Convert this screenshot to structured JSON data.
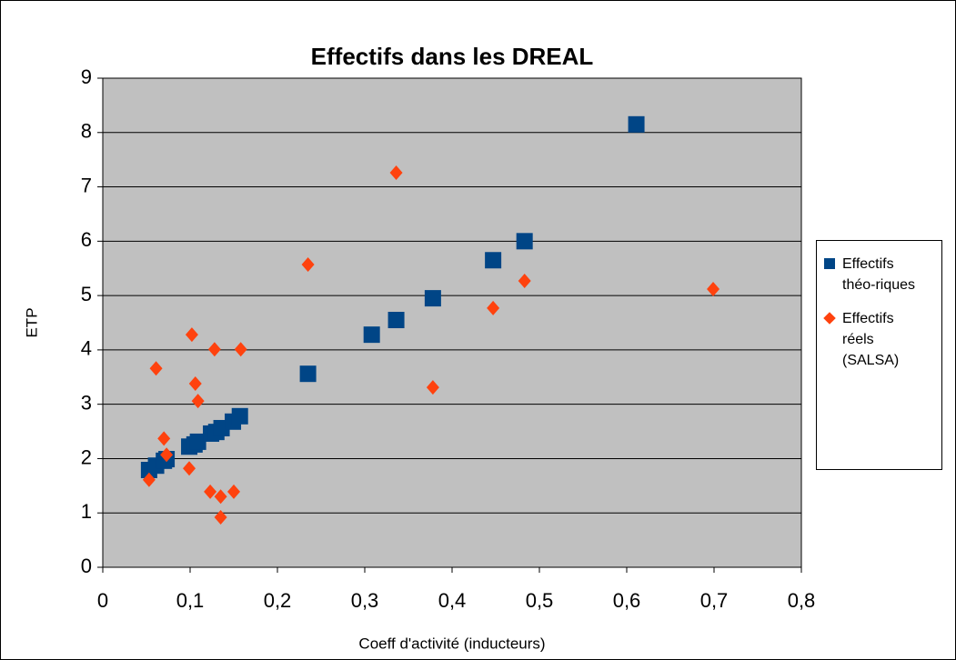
{
  "chart_data": {
    "type": "scatter",
    "title": "Effectifs dans les  DREAL",
    "xlabel": "Coeff d'activité (inducteurs)",
    "ylabel": "ETP",
    "xlim": [
      0,
      0.8
    ],
    "ylim": [
      0,
      9
    ],
    "xticks": [
      0,
      {
        "value": 0.1,
        "label": "0,1"
      },
      {
        "value": 0.2,
        "label": "0,2"
      },
      {
        "value": 0.3,
        "label": "0,3"
      },
      {
        "value": 0.4,
        "label": "0,4"
      },
      {
        "value": 0.5,
        "label": "0,5"
      },
      {
        "value": 0.6,
        "label": "0,6"
      },
      {
        "value": 0.7,
        "label": "0,7"
      },
      {
        "value": 0.8,
        "label": "0,8"
      }
    ],
    "yticks": [
      0,
      1,
      2,
      3,
      4,
      5,
      6,
      7,
      8,
      9
    ],
    "grid": true,
    "legend": "right",
    "series": [
      {
        "name": "Effectifs théo-riques",
        "color": "#004586",
        "marker": "square",
        "x": [
          0.053,
          0.061,
          0.07,
          0.073,
          0.099,
          0.105,
          0.109,
          0.124,
          0.13,
          0.136,
          0.149,
          0.157,
          0.235,
          0.308,
          0.336,
          0.378,
          0.447,
          0.483,
          0.611
        ],
        "values": [
          1.79,
          1.87,
          1.96,
          1.99,
          2.22,
          2.26,
          2.31,
          2.46,
          2.49,
          2.56,
          2.68,
          2.78,
          3.56,
          4.28,
          4.55,
          4.95,
          5.65,
          6.0,
          8.15
        ]
      },
      {
        "name": "Effectifs réels (SALSA)",
        "color": "#ff420e",
        "marker": "diamond",
        "x": [
          0.053,
          0.061,
          0.07,
          0.073,
          0.099,
          0.102,
          0.106,
          0.109,
          0.123,
          0.128,
          0.135,
          0.135,
          0.15,
          0.158,
          0.235,
          0.336,
          0.378,
          0.447,
          0.483,
          0.699
        ],
        "values": [
          1.61,
          3.66,
          2.37,
          2.07,
          1.82,
          4.28,
          3.38,
          3.06,
          1.39,
          4.01,
          0.92,
          1.3,
          1.39,
          4.01,
          5.57,
          7.26,
          3.31,
          4.77,
          5.27,
          5.12
        ]
      }
    ]
  }
}
